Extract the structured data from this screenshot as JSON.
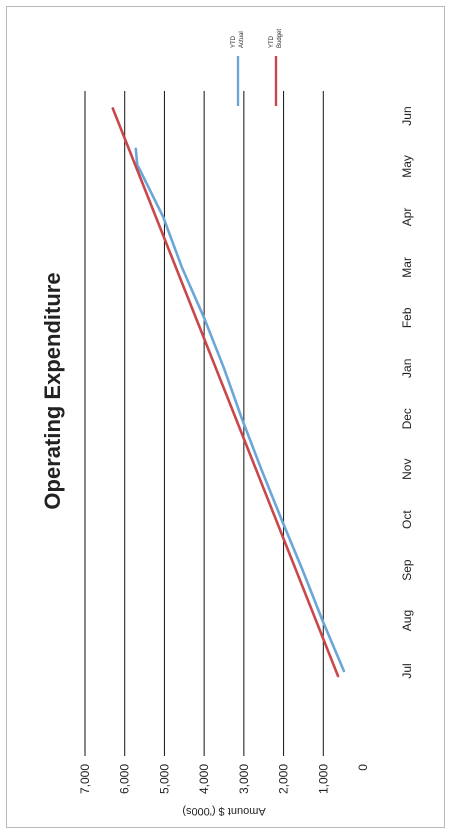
{
  "chart_data": {
    "type": "line",
    "title": "Operating Expenditure",
    "ylabel": "Amount $ ('000s)",
    "xlabel": "",
    "categories": [
      "Jul",
      "Aug",
      "Sep",
      "Oct",
      "Nov",
      "Dec",
      "Jan",
      "Feb",
      "Mar",
      "Apr",
      "May",
      "Jun"
    ],
    "ylim": [
      0,
      7000
    ],
    "yticks": [
      0,
      1000,
      2000,
      3000,
      4000,
      5000,
      6000,
      7000
    ],
    "ytick_labels": [
      "0",
      "1,000",
      "2,000",
      "3,000",
      "4,000",
      "5,000",
      "6,000",
      "7,000"
    ],
    "grid": true,
    "legend_position": "top-right",
    "series": [
      {
        "name": "YTD Actual",
        "color": "#6aa6d8",
        "x": [
          0,
          1,
          2,
          3,
          4,
          5,
          6,
          7,
          8,
          9,
          10,
          10,
          10.35
        ],
        "values": [
          480,
          1020,
          1520,
          2050,
          2560,
          3050,
          3500,
          4000,
          4560,
          5030,
          5660,
          5680,
          5720
        ]
      },
      {
        "name": "YTD Budget",
        "color": "#c9474b",
        "x": [
          -0.1,
          11.15
        ],
        "values": [
          630,
          6300
        ]
      }
    ],
    "legend": [
      {
        "label": "YTD Actual",
        "color": "#6aa6d8"
      },
      {
        "label": "YTD Budget",
        "color": "#c9474b"
      }
    ]
  }
}
